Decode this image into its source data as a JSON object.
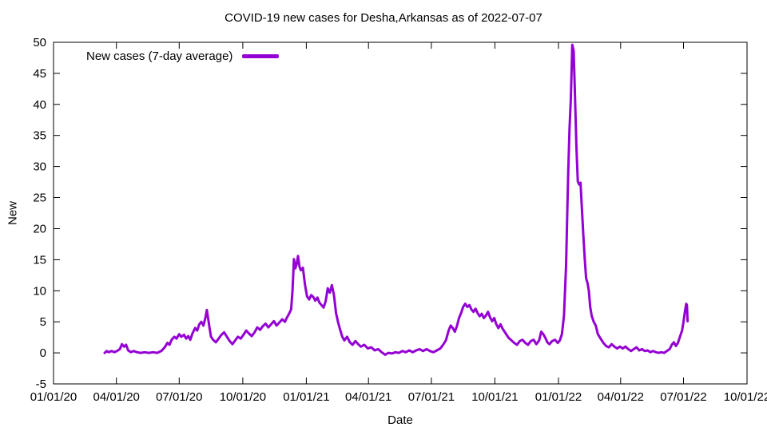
{
  "chart_data": {
    "type": "line",
    "title": "COVID-19 new cases for Desha,Arkansas as of 2022-07-07",
    "xlabel": "Date",
    "ylabel": "New",
    "grid": false,
    "legend_position": "top-left-inside",
    "line_color": "#9400d3",
    "xlim": [
      "2020-01-01",
      "2022-10-01"
    ],
    "ylim": [
      -5,
      50
    ],
    "xticks": [
      {
        "date": "2020-01-01",
        "label": "01/01/20"
      },
      {
        "date": "2020-04-01",
        "label": "04/01/20"
      },
      {
        "date": "2020-07-01",
        "label": "07/01/20"
      },
      {
        "date": "2020-10-01",
        "label": "10/01/20"
      },
      {
        "date": "2021-01-01",
        "label": "01/01/21"
      },
      {
        "date": "2021-04-01",
        "label": "04/01/21"
      },
      {
        "date": "2021-07-01",
        "label": "07/01/21"
      },
      {
        "date": "2021-10-01",
        "label": "10/01/21"
      },
      {
        "date": "2022-01-01",
        "label": "01/01/22"
      },
      {
        "date": "2022-04-01",
        "label": "04/01/22"
      },
      {
        "date": "2022-07-01",
        "label": "07/01/22"
      },
      {
        "date": "2022-10-01",
        "label": "10/01/22"
      }
    ],
    "yticks": [
      {
        "value": -5,
        "label": "-5"
      },
      {
        "value": 0,
        "label": "0"
      },
      {
        "value": 5,
        "label": "5"
      },
      {
        "value": 10,
        "label": "10"
      },
      {
        "value": 15,
        "label": "15"
      },
      {
        "value": 20,
        "label": "20"
      },
      {
        "value": 25,
        "label": "25"
      },
      {
        "value": 30,
        "label": "30"
      },
      {
        "value": 35,
        "label": "35"
      },
      {
        "value": 40,
        "label": "40"
      },
      {
        "value": 45,
        "label": "45"
      },
      {
        "value": 50,
        "label": "50"
      }
    ],
    "series": [
      {
        "name": "New cases (7-day average)",
        "color": "#9400d3",
        "points": [
          [
            "2020-03-15",
            0.0
          ],
          [
            "2020-03-18",
            0.3
          ],
          [
            "2020-03-21",
            0.1
          ],
          [
            "2020-03-25",
            0.3
          ],
          [
            "2020-03-29",
            0.1
          ],
          [
            "2020-04-02",
            0.3
          ],
          [
            "2020-04-06",
            0.6
          ],
          [
            "2020-04-09",
            1.4
          ],
          [
            "2020-04-12",
            1.0
          ],
          [
            "2020-04-15",
            1.3
          ],
          [
            "2020-04-18",
            0.4
          ],
          [
            "2020-04-22",
            0.1
          ],
          [
            "2020-04-26",
            0.3
          ],
          [
            "2020-05-01",
            0.1
          ],
          [
            "2020-05-06",
            0.0
          ],
          [
            "2020-05-12",
            0.1
          ],
          [
            "2020-05-18",
            0.0
          ],
          [
            "2020-05-24",
            0.1
          ],
          [
            "2020-05-30",
            0.0
          ],
          [
            "2020-06-05",
            0.3
          ],
          [
            "2020-06-10",
            0.9
          ],
          [
            "2020-06-14",
            1.6
          ],
          [
            "2020-06-17",
            1.3
          ],
          [
            "2020-06-20",
            2.1
          ],
          [
            "2020-06-24",
            2.6
          ],
          [
            "2020-06-27",
            2.3
          ],
          [
            "2020-07-01",
            3.0
          ],
          [
            "2020-07-04",
            2.6
          ],
          [
            "2020-07-08",
            2.9
          ],
          [
            "2020-07-11",
            2.3
          ],
          [
            "2020-07-14",
            2.7
          ],
          [
            "2020-07-17",
            2.1
          ],
          [
            "2020-07-20",
            3.1
          ],
          [
            "2020-07-24",
            4.0
          ],
          [
            "2020-07-27",
            3.6
          ],
          [
            "2020-07-30",
            4.6
          ],
          [
            "2020-08-02",
            5.0
          ],
          [
            "2020-08-05",
            4.4
          ],
          [
            "2020-08-08",
            5.7
          ],
          [
            "2020-08-10",
            6.9
          ],
          [
            "2020-08-12",
            5.4
          ],
          [
            "2020-08-14",
            3.9
          ],
          [
            "2020-08-16",
            2.6
          ],
          [
            "2020-08-19",
            2.1
          ],
          [
            "2020-08-23",
            1.7
          ],
          [
            "2020-08-27",
            2.3
          ],
          [
            "2020-08-31",
            2.9
          ],
          [
            "2020-09-04",
            3.3
          ],
          [
            "2020-09-08",
            2.6
          ],
          [
            "2020-09-12",
            1.9
          ],
          [
            "2020-09-16",
            1.4
          ],
          [
            "2020-09-20",
            2.0
          ],
          [
            "2020-09-24",
            2.6
          ],
          [
            "2020-09-28",
            2.3
          ],
          [
            "2020-10-02",
            2.9
          ],
          [
            "2020-10-06",
            3.6
          ],
          [
            "2020-10-10",
            3.1
          ],
          [
            "2020-10-14",
            2.7
          ],
          [
            "2020-10-18",
            3.3
          ],
          [
            "2020-10-22",
            4.1
          ],
          [
            "2020-10-26",
            3.7
          ],
          [
            "2020-10-30",
            4.3
          ],
          [
            "2020-11-03",
            4.7
          ],
          [
            "2020-11-07",
            4.1
          ],
          [
            "2020-11-11",
            4.6
          ],
          [
            "2020-11-15",
            5.1
          ],
          [
            "2020-11-19",
            4.4
          ],
          [
            "2020-11-23",
            4.9
          ],
          [
            "2020-11-27",
            5.4
          ],
          [
            "2020-12-01",
            5.0
          ],
          [
            "2020-12-04",
            5.7
          ],
          [
            "2020-12-07",
            6.3
          ],
          [
            "2020-12-10",
            7.0
          ],
          [
            "2020-12-12",
            10.0
          ],
          [
            "2020-12-14",
            15.1
          ],
          [
            "2020-12-16",
            13.6
          ],
          [
            "2020-12-18",
            14.3
          ],
          [
            "2020-12-20",
            15.6
          ],
          [
            "2020-12-22",
            13.9
          ],
          [
            "2020-12-24",
            13.3
          ],
          [
            "2020-12-27",
            13.7
          ],
          [
            "2020-12-30",
            11.0
          ],
          [
            "2021-01-02",
            9.1
          ],
          [
            "2021-01-05",
            8.6
          ],
          [
            "2021-01-08",
            9.3
          ],
          [
            "2021-01-11",
            9.0
          ],
          [
            "2021-01-14",
            8.4
          ],
          [
            "2021-01-17",
            8.9
          ],
          [
            "2021-01-20",
            8.1
          ],
          [
            "2021-01-23",
            7.7
          ],
          [
            "2021-01-26",
            7.3
          ],
          [
            "2021-01-29",
            8.3
          ],
          [
            "2021-02-01",
            10.4
          ],
          [
            "2021-02-04",
            9.7
          ],
          [
            "2021-02-07",
            10.9
          ],
          [
            "2021-02-10",
            9.3
          ],
          [
            "2021-02-13",
            6.4
          ],
          [
            "2021-02-16",
            4.9
          ],
          [
            "2021-02-19",
            3.7
          ],
          [
            "2021-02-22",
            2.6
          ],
          [
            "2021-02-25",
            2.0
          ],
          [
            "2021-03-01",
            2.6
          ],
          [
            "2021-03-05",
            1.7
          ],
          [
            "2021-03-09",
            1.3
          ],
          [
            "2021-03-13",
            1.9
          ],
          [
            "2021-03-17",
            1.4
          ],
          [
            "2021-03-21",
            1.0
          ],
          [
            "2021-03-26",
            1.3
          ],
          [
            "2021-03-31",
            0.7
          ],
          [
            "2021-04-05",
            0.9
          ],
          [
            "2021-04-10",
            0.4
          ],
          [
            "2021-04-15",
            0.6
          ],
          [
            "2021-04-20",
            0.1
          ],
          [
            "2021-04-25",
            -0.3
          ],
          [
            "2021-04-30",
            0.0
          ],
          [
            "2021-05-05",
            -0.1
          ],
          [
            "2021-05-10",
            0.1
          ],
          [
            "2021-05-15",
            0.0
          ],
          [
            "2021-05-20",
            0.3
          ],
          [
            "2021-05-25",
            0.1
          ],
          [
            "2021-05-30",
            0.4
          ],
          [
            "2021-06-04",
            0.1
          ],
          [
            "2021-06-09",
            0.4
          ],
          [
            "2021-06-14",
            0.6
          ],
          [
            "2021-06-19",
            0.3
          ],
          [
            "2021-06-24",
            0.6
          ],
          [
            "2021-06-29",
            0.3
          ],
          [
            "2021-07-04",
            0.1
          ],
          [
            "2021-07-09",
            0.4
          ],
          [
            "2021-07-14",
            0.7
          ],
          [
            "2021-07-18",
            1.3
          ],
          [
            "2021-07-22",
            2.0
          ],
          [
            "2021-07-26",
            3.6
          ],
          [
            "2021-07-29",
            4.4
          ],
          [
            "2021-08-01",
            4.0
          ],
          [
            "2021-08-04",
            3.4
          ],
          [
            "2021-08-07",
            4.3
          ],
          [
            "2021-08-10",
            5.6
          ],
          [
            "2021-08-13",
            6.4
          ],
          [
            "2021-08-16",
            7.4
          ],
          [
            "2021-08-19",
            7.9
          ],
          [
            "2021-08-22",
            7.4
          ],
          [
            "2021-08-25",
            7.7
          ],
          [
            "2021-08-28",
            7.0
          ],
          [
            "2021-08-31",
            6.6
          ],
          [
            "2021-09-03",
            7.1
          ],
          [
            "2021-09-06",
            6.4
          ],
          [
            "2021-09-09",
            5.9
          ],
          [
            "2021-09-12",
            6.3
          ],
          [
            "2021-09-15",
            5.6
          ],
          [
            "2021-09-18",
            6.0
          ],
          [
            "2021-09-21",
            6.6
          ],
          [
            "2021-09-24",
            5.7
          ],
          [
            "2021-09-27",
            5.1
          ],
          [
            "2021-09-30",
            5.6
          ],
          [
            "2021-10-03",
            4.6
          ],
          [
            "2021-10-06",
            4.0
          ],
          [
            "2021-10-09",
            4.6
          ],
          [
            "2021-10-12",
            3.9
          ],
          [
            "2021-10-15",
            3.4
          ],
          [
            "2021-10-18",
            2.9
          ],
          [
            "2021-10-21",
            2.4
          ],
          [
            "2021-10-25",
            2.0
          ],
          [
            "2021-10-29",
            1.6
          ],
          [
            "2021-11-02",
            1.3
          ],
          [
            "2021-11-06",
            1.9
          ],
          [
            "2021-11-10",
            2.1
          ],
          [
            "2021-11-14",
            1.6
          ],
          [
            "2021-11-18",
            1.3
          ],
          [
            "2021-11-22",
            1.9
          ],
          [
            "2021-11-26",
            2.1
          ],
          [
            "2021-11-30",
            1.4
          ],
          [
            "2021-12-04",
            2.0
          ],
          [
            "2021-12-07",
            3.4
          ],
          [
            "2021-12-10",
            3.0
          ],
          [
            "2021-12-13",
            2.4
          ],
          [
            "2021-12-16",
            1.7
          ],
          [
            "2021-12-19",
            1.4
          ],
          [
            "2021-12-23",
            1.9
          ],
          [
            "2021-12-27",
            2.1
          ],
          [
            "2021-12-31",
            1.6
          ],
          [
            "2022-01-03",
            2.0
          ],
          [
            "2022-01-06",
            3.0
          ],
          [
            "2022-01-09",
            6.0
          ],
          [
            "2022-01-12",
            14.0
          ],
          [
            "2022-01-15",
            28.6
          ],
          [
            "2022-01-17",
            36.0
          ],
          [
            "2022-01-19",
            41.0
          ],
          [
            "2022-01-21",
            49.6
          ],
          [
            "2022-01-23",
            48.6
          ],
          [
            "2022-01-25",
            41.3
          ],
          [
            "2022-01-27",
            33.0
          ],
          [
            "2022-01-29",
            27.6
          ],
          [
            "2022-01-31",
            27.1
          ],
          [
            "2022-02-02",
            27.4
          ],
          [
            "2022-02-04",
            23.0
          ],
          [
            "2022-02-06",
            19.0
          ],
          [
            "2022-02-08",
            15.3
          ],
          [
            "2022-02-10",
            12.0
          ],
          [
            "2022-02-12",
            11.3
          ],
          [
            "2022-02-14",
            10.0
          ],
          [
            "2022-02-16",
            7.4
          ],
          [
            "2022-02-18",
            6.0
          ],
          [
            "2022-02-21",
            5.0
          ],
          [
            "2022-02-24",
            4.4
          ],
          [
            "2022-02-27",
            3.0
          ],
          [
            "2022-03-03",
            2.3
          ],
          [
            "2022-03-07",
            1.6
          ],
          [
            "2022-03-11",
            1.1
          ],
          [
            "2022-03-15",
            0.9
          ],
          [
            "2022-03-19",
            1.4
          ],
          [
            "2022-03-23",
            1.0
          ],
          [
            "2022-03-27",
            0.7
          ],
          [
            "2022-03-31",
            1.0
          ],
          [
            "2022-04-04",
            0.7
          ],
          [
            "2022-04-08",
            1.0
          ],
          [
            "2022-04-12",
            0.6
          ],
          [
            "2022-04-16",
            0.3
          ],
          [
            "2022-04-20",
            0.6
          ],
          [
            "2022-04-24",
            0.9
          ],
          [
            "2022-04-28",
            0.4
          ],
          [
            "2022-05-02",
            0.6
          ],
          [
            "2022-05-06",
            0.3
          ],
          [
            "2022-05-10",
            0.4
          ],
          [
            "2022-05-14",
            0.1
          ],
          [
            "2022-05-18",
            0.3
          ],
          [
            "2022-05-22",
            0.1
          ],
          [
            "2022-05-26",
            0.0
          ],
          [
            "2022-05-30",
            0.1
          ],
          [
            "2022-06-03",
            0.0
          ],
          [
            "2022-06-07",
            0.3
          ],
          [
            "2022-06-11",
            0.6
          ],
          [
            "2022-06-14",
            1.3
          ],
          [
            "2022-06-17",
            1.7
          ],
          [
            "2022-06-20",
            1.1
          ],
          [
            "2022-06-23",
            1.6
          ],
          [
            "2022-06-26",
            2.6
          ],
          [
            "2022-06-29",
            3.6
          ],
          [
            "2022-07-01",
            5.0
          ],
          [
            "2022-07-03",
            6.6
          ],
          [
            "2022-07-05",
            7.9
          ],
          [
            "2022-07-06",
            7.7
          ],
          [
            "2022-07-07",
            5.1
          ]
        ]
      }
    ]
  }
}
